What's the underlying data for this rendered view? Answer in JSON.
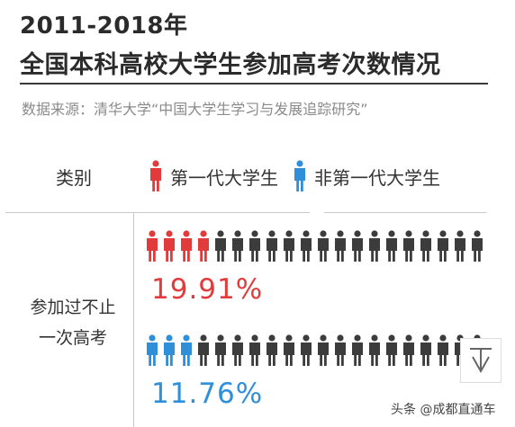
{
  "title_line1": "2011-2018年",
  "title_line2": "全国本科高校大学生参加高考次数情况",
  "source": "数据来源：清华大学“中国大学生学习与发展追踪研究”",
  "header": {
    "category_label": "类别",
    "legend_first_gen": "第一代大学生",
    "legend_non_first_gen": "非第一代大学生"
  },
  "colors": {
    "first_gen": "#e23b3b",
    "non_first_gen": "#2f8fd8",
    "rest": "#3c3c3c"
  },
  "row_label_line1": "参加过不止",
  "row_label_line2": "一次高考",
  "chart_data": {
    "type": "pictogram",
    "category": "参加过不止一次高考",
    "icons_per_row": 20,
    "series": [
      {
        "name": "第一代大学生",
        "value": 19.91,
        "label": "19.91%",
        "highlighted_icons": 4
      },
      {
        "name": "非第一代大学生",
        "value": 11.76,
        "label": "11.76%",
        "highlighted_icons": 3
      }
    ]
  },
  "footer": "头条 @成都直通车",
  "corner_icon": "download-icon"
}
